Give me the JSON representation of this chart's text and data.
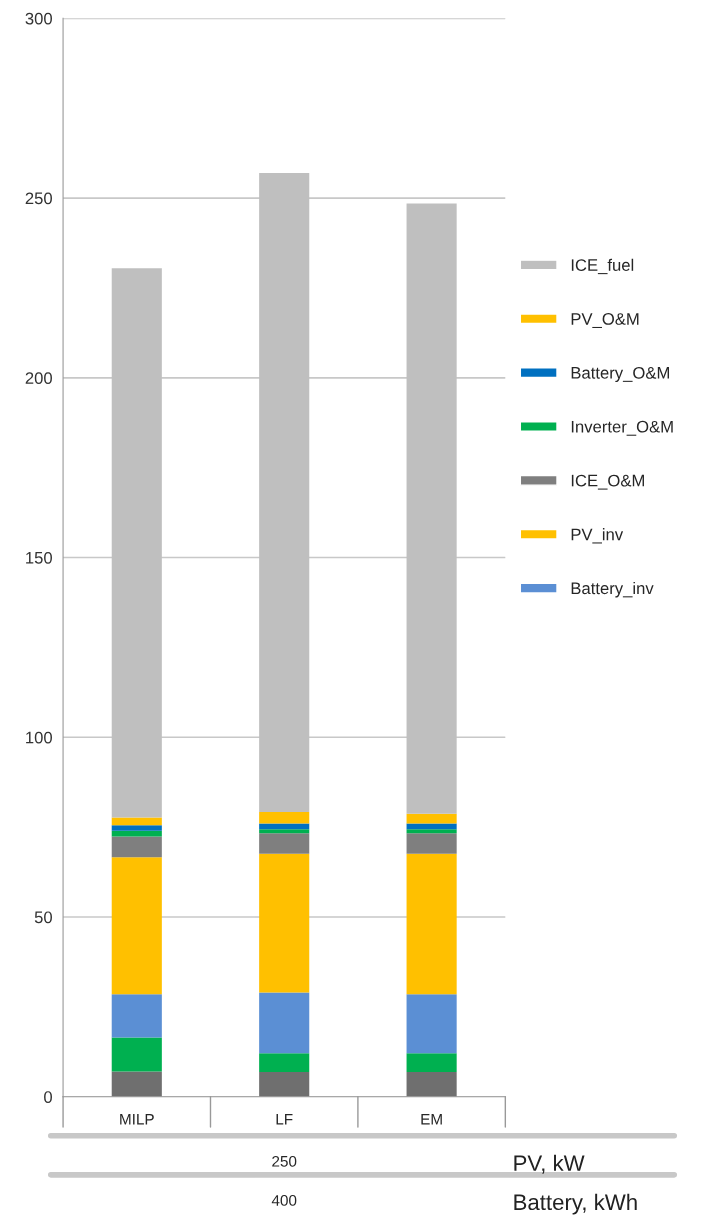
{
  "chart_data": {
    "type": "bar",
    "stacked": true,
    "categories": [
      "MILP",
      "LF",
      "EM"
    ],
    "series": [
      {
        "color": "#6f6f6f",
        "values": [
          7.0,
          6.9,
          6.9
        ]
      },
      {
        "color": "#00b050",
        "values": [
          9.5,
          5.2,
          5.2
        ]
      },
      {
        "name": "Battery_inv",
        "color": "#5b8fd4",
        "values": [
          12.0,
          16.9,
          16.4
        ]
      },
      {
        "name": "PV_inv",
        "color": "#ffc000",
        "values": [
          38.1,
          38.6,
          39.1
        ]
      },
      {
        "name": "ICE_O&M",
        "color": "#7f7f7f",
        "values": [
          5.8,
          5.7,
          5.7
        ]
      },
      {
        "name": "Inverter_O&M",
        "color": "#00b050",
        "values": [
          1.6,
          1.1,
          1.1
        ]
      },
      {
        "name": "Battery_O&M",
        "color": "#0070c0",
        "values": [
          1.5,
          1.6,
          1.6
        ]
      },
      {
        "name": "PV_O&M",
        "color": "#ffc000",
        "values": [
          2.2,
          3.2,
          2.7
        ]
      },
      {
        "name": "ICE_fuel",
        "color": "#bfbfbf",
        "values": [
          152.8,
          177.8,
          169.8
        ]
      }
    ],
    "ylim": [
      0,
      300
    ],
    "yticks": [
      0,
      50,
      100,
      150,
      200,
      250,
      300
    ],
    "grid": "y",
    "legend": "right",
    "annotations": [
      "250",
      "PV, kW",
      "400",
      "Battery, kWh"
    ]
  }
}
